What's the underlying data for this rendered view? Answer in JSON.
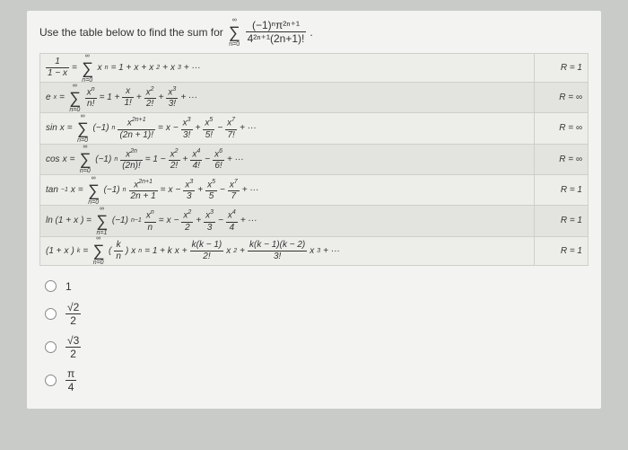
{
  "prompt": {
    "text": "Use the table below to find the sum for",
    "sum_top": "∞",
    "sum_bot": "n=0",
    "frac_num": "(−1)ⁿπ²ⁿ⁺¹",
    "frac_den": "4²ⁿ⁺¹(2n+1)!"
  },
  "rows": [
    {
      "lhs_html": "<span class='frac'><span class='num'>1</span><span class='den'>1 − <i>x</i></span></span> = <span class='sum'><span class='top'>∞</span><span class='sig'>∑</span><span class='bot'>n=0</span></span> <i>x</i><sup>n</sup> = 1 + <i>x</i> + <i>x</i><sup>2</sup> + <i>x</i><sup>3</sup> + ···",
      "r": "R = 1"
    },
    {
      "lhs_html": "<i>e</i><sup>x</sup> = <span class='sum'><span class='top'>∞</span><span class='sig'>∑</span><span class='bot'>n=0</span></span> <span class='frac'><span class='num'><i>x</i><sup>n</sup></span><span class='den'>n!</span></span> = 1 + <span class='frac'><span class='num'><i>x</i></span><span class='den'>1!</span></span> + <span class='frac'><span class='num'><i>x</i><sup>2</sup></span><span class='den'>2!</span></span> + <span class='frac'><span class='num'><i>x</i><sup>3</sup></span><span class='den'>3!</span></span> + ···",
      "r": "R = ∞"
    },
    {
      "lhs_html": "sin <i>x</i> = <span class='sum'><span class='top'>∞</span><span class='sig'>∑</span><span class='bot'>n=0</span></span> (−1)<sup>n</sup> <span class='frac'><span class='num'><i>x</i><sup>2n+1</sup></span><span class='den'>(2n + 1)!</span></span> = <i>x</i> − <span class='frac'><span class='num'><i>x</i><sup>3</sup></span><span class='den'>3!</span></span> + <span class='frac'><span class='num'><i>x</i><sup>5</sup></span><span class='den'>5!</span></span> − <span class='frac'><span class='num'><i>x</i><sup>7</sup></span><span class='den'>7!</span></span> + ···",
      "r": "R = ∞"
    },
    {
      "lhs_html": "cos <i>x</i> = <span class='sum'><span class='top'>∞</span><span class='sig'>∑</span><span class='bot'>n=0</span></span> (−1)<sup>n</sup> <span class='frac'><span class='num'><i>x</i><sup>2n</sup></span><span class='den'>(2n)!</span></span> = 1 − <span class='frac'><span class='num'><i>x</i><sup>2</sup></span><span class='den'>2!</span></span> + <span class='frac'><span class='num'><i>x</i><sup>4</sup></span><span class='den'>4!</span></span> − <span class='frac'><span class='num'><i>x</i><sup>6</sup></span><span class='den'>6!</span></span> + ···",
      "r": "R = ∞"
    },
    {
      "lhs_html": "tan<sup>−1</sup><i>x</i> = <span class='sum'><span class='top'>∞</span><span class='sig'>∑</span><span class='bot'>n=0</span></span> (−1)<sup>n</sup> <span class='frac'><span class='num'><i>x</i><sup>2n+1</sup></span><span class='den'>2n + 1</span></span> = <i>x</i> − <span class='frac'><span class='num'><i>x</i><sup>3</sup></span><span class='den'>3</span></span> + <span class='frac'><span class='num'><i>x</i><sup>5</sup></span><span class='den'>5</span></span> − <span class='frac'><span class='num'><i>x</i><sup>7</sup></span><span class='den'>7</span></span> + ···",
      "r": "R = 1"
    },
    {
      "lhs_html": "ln (1 + <i>x</i>) = <span class='sum'><span class='top'>∞</span><span class='sig'>∑</span><span class='bot'>n=1</span></span> (−1)<sup>n−1</sup> <span class='frac'><span class='num'><i>x</i><sup>n</sup></span><span class='den'>n</span></span> = <i>x</i> − <span class='frac'><span class='num'><i>x</i><sup>2</sup></span><span class='den'>2</span></span> + <span class='frac'><span class='num'><i>x</i><sup>3</sup></span><span class='den'>3</span></span> − <span class='frac'><span class='num'><i>x</i><sup>4</sup></span><span class='den'>4</span></span> + ···",
      "r": "R = 1"
    },
    {
      "lhs_html": "(1 + <i>x</i>)<sup>k</sup> = <span class='sum'><span class='top'>∞</span><span class='sig'>∑</span><span class='bot'>n=0</span></span> (<span class='frac'><span class='num'>k</span><span class='den'>n</span></span>) <i>x</i><sup>n</sup> = 1 + k<i>x</i> + <span class='frac'><span class='num'>k(k − 1)</span><span class='den'>2!</span></span><i>x</i><sup>2</sup> + <span class='frac'><span class='num'>k(k − 1)(k − 2)</span><span class='den'>3!</span></span><i>x</i><sup>3</sup> + ···",
      "r": "R = 1"
    }
  ],
  "options": [
    {
      "html": "1"
    },
    {
      "html": "<span class='frac'><span class='num'>√2</span><span class='den'>2</span></span>"
    },
    {
      "html": "<span class='frac'><span class='num'>√3</span><span class='den'>2</span></span>"
    },
    {
      "html": "<span class='frac'><span class='num'>π</span><span class='den'>4</span></span>"
    }
  ]
}
